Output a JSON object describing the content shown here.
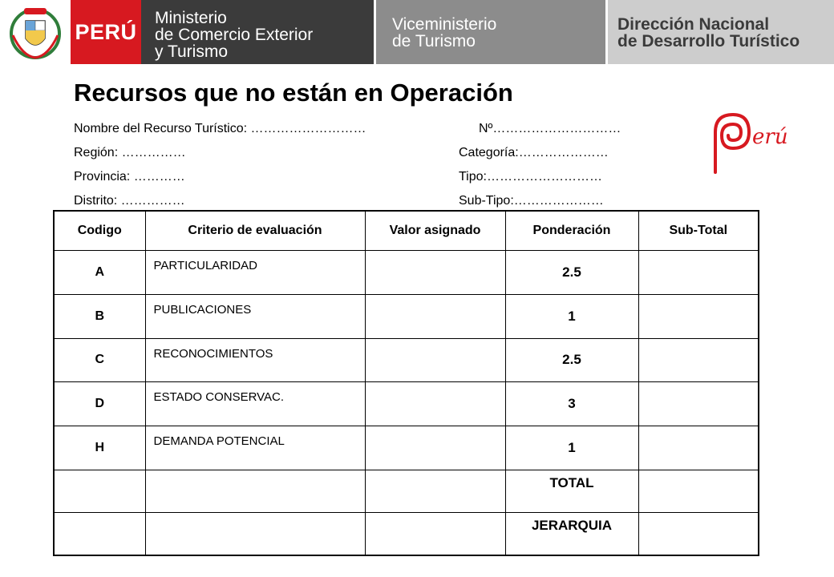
{
  "header": {
    "country_label": "PERÚ",
    "ministry_lines": [
      "Ministerio",
      "de Comercio Exterior",
      "y Turismo"
    ],
    "vice_lines": [
      "Viceministerio",
      "de Turismo"
    ],
    "direction_lines": [
      "Dirección Nacional",
      "de Desarrollo Turístico"
    ],
    "colors": {
      "red": "#d71920",
      "dark": "#3b3b3b",
      "mid": "#8c8c8c",
      "light": "#cdcdcd"
    }
  },
  "doc": {
    "title": "Recursos que no están en Operación",
    "fields": {
      "nombre": "Nombre del Recurso Turístico: ………………………",
      "numero": "Nº…………………………",
      "region": "Región:     ……………",
      "categoria": "Categoría:…………………",
      "provincia": "Provincia: …………",
      "tipo": "Tipo:………………………",
      "distrito": "Distrito:    ……………",
      "subtipo": "Sub-Tipo:…………………"
    },
    "logo_text": "erú"
  },
  "table": {
    "headers": [
      "Codigo",
      "Criterio de evaluación",
      "Valor asignado",
      "Ponderación",
      "Sub-Total"
    ],
    "rows": [
      {
        "code": "A",
        "criterion": "PARTICULARIDAD",
        "weight": "2.5"
      },
      {
        "code": "B",
        "criterion": "PUBLICACIONES",
        "weight": "1"
      },
      {
        "code": "C",
        "criterion": "RECONOCIMIENTOS",
        "weight": "2.5"
      },
      {
        "code": "D",
        "criterion": "ESTADO CONSERVAC.",
        "weight": "3"
      },
      {
        "code": "H",
        "criterion": "DEMANDA POTENCIAL",
        "weight": "1"
      }
    ],
    "total_label": "TOTAL",
    "jerarquia_label": "JERARQUIA"
  }
}
